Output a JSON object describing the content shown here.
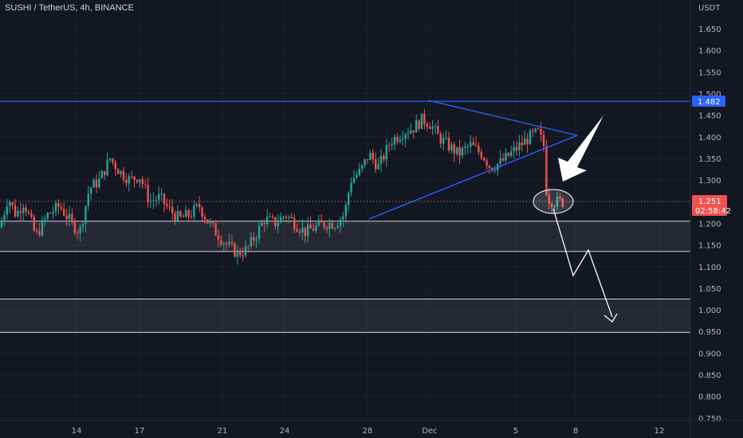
{
  "symbol_legend": "SUSHI / TetherUS, 4h, BINANCE",
  "price_axis": {
    "currency": "USDT",
    "tick_labels": [
      "1.650",
      "1.600",
      "1.550",
      "1.500",
      "1.450",
      "1.400",
      "1.350",
      "1.300",
      "1.250",
      "1.200",
      "1.150",
      "1.100",
      "1.050",
      "1.000",
      "0.950",
      "0.900",
      "0.850",
      "0.800",
      "0.750"
    ]
  },
  "time_axis": {
    "tick_labels": [
      "14",
      "17",
      "21",
      "24",
      "28",
      "Dec",
      "5",
      "8",
      "12"
    ]
  },
  "price_badges": {
    "resistance_level": "1.482",
    "last_price": "1.251",
    "countdown": "02:58:42"
  },
  "colors": {
    "background": "#131722",
    "up": "#26a69a",
    "down": "#ef5350",
    "trendline": "#2962ff",
    "level_badge": "#2962ff",
    "grid": "#1e222d"
  },
  "chart_data": {
    "type": "candlestick",
    "symbol": "SUSHI/USDT",
    "interval": "4h",
    "exchange": "BINANCE",
    "y_range": [
      0.75,
      1.68
    ],
    "support_zones": [
      [
        1.135,
        1.205
      ],
      [
        0.948,
        1.025
      ]
    ],
    "resistance_level": 1.482,
    "last_price": 1.251,
    "triangle": {
      "upper_line": [
        [
          1.49,
          1.41
        ]
      ],
      "lower_line": [
        [
          1.21,
          1.4
        ]
      ]
    },
    "trend_notes": "price broke below symmetrical triangle; projected path downward toward 0.97"
  }
}
